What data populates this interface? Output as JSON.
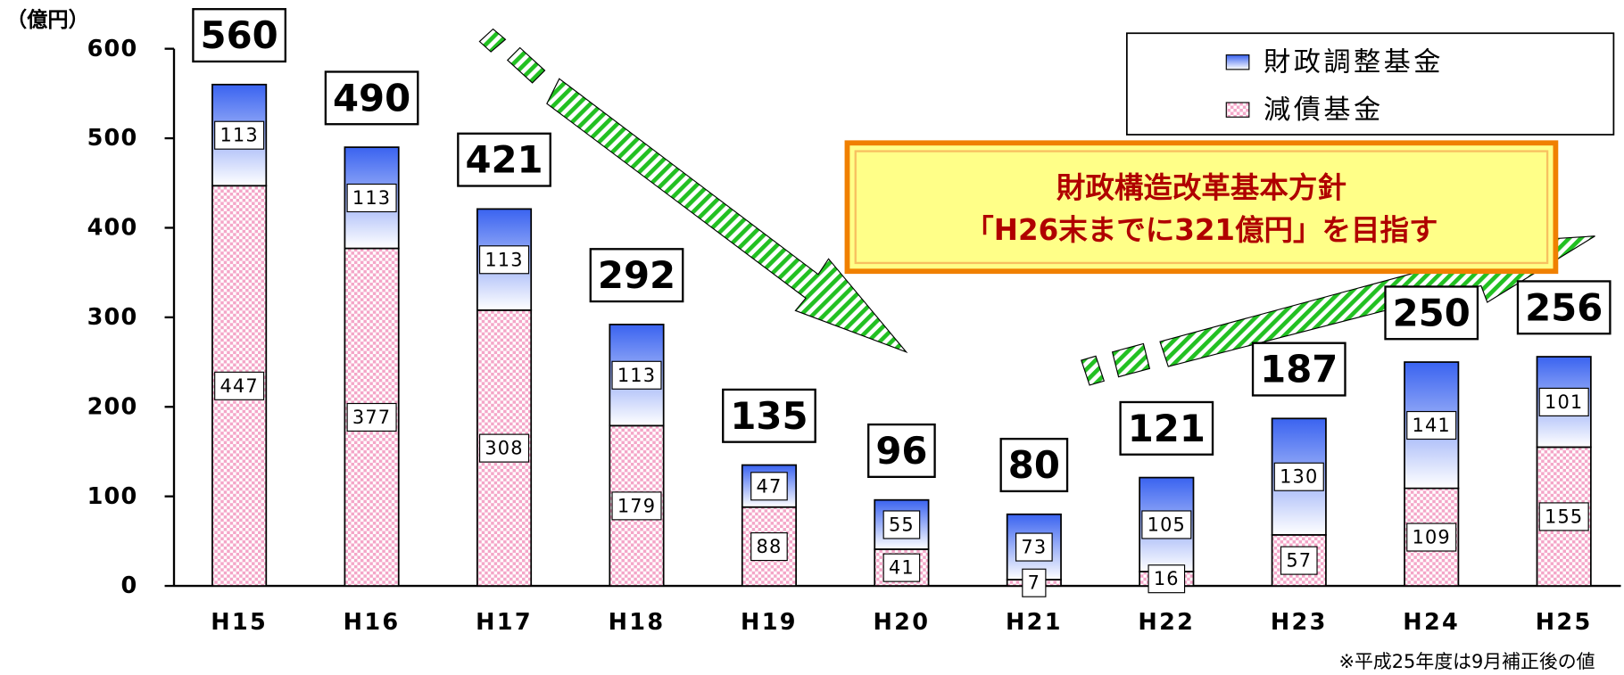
{
  "chart_data": {
    "type": "stacked_bar",
    "y_label": "（億円）",
    "categories": [
      "H15",
      "H16",
      "H17",
      "H18",
      "H19",
      "H20",
      "H21",
      "H22",
      "H23",
      "H24",
      "H25"
    ],
    "series": [
      {
        "name": "減債基金",
        "color": "#f4a6c8",
        "values": [
          447,
          377,
          308,
          179,
          88,
          41,
          7,
          16,
          57,
          109,
          155
        ]
      },
      {
        "name": "財政調整基金",
        "color": "#3a63f0",
        "values": [
          113,
          113,
          113,
          113,
          47,
          55,
          73,
          105,
          130,
          141,
          101
        ]
      }
    ],
    "totals": [
      560,
      490,
      421,
      292,
      135,
      96,
      80,
      121,
      187,
      250,
      256
    ],
    "ylim": [
      0,
      600
    ],
    "yticks": [
      0,
      100,
      200,
      300,
      400,
      500,
      600
    ],
    "annotation": [
      "財政構造改革基本方針",
      "「H26末までに321億円」を目指す"
    ],
    "footnote": "※平成25年度は9月補正後の値",
    "legend": "top-right"
  }
}
